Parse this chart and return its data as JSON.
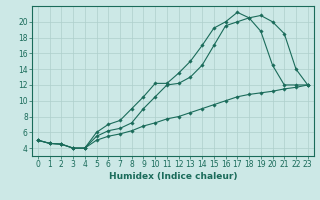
{
  "xlabel": "Humidex (Indice chaleur)",
  "bg_color": "#cce8e6",
  "line_color": "#1a6b5a",
  "grid_color": "#aecfcc",
  "line1_x": [
    0,
    1,
    2,
    3,
    4,
    5,
    6,
    7,
    8,
    9,
    10,
    11,
    12,
    13,
    14,
    15,
    16,
    17,
    18,
    19,
    20,
    21,
    22,
    23
  ],
  "line1_y": [
    5.0,
    4.6,
    4.5,
    4.0,
    4.0,
    6.0,
    7.0,
    7.5,
    9.0,
    10.5,
    12.2,
    12.2,
    13.5,
    15.0,
    17.0,
    19.2,
    20.0,
    21.2,
    20.5,
    18.8,
    14.5,
    12.0,
    12.0,
    12.0
  ],
  "line2_x": [
    0,
    1,
    2,
    3,
    4,
    5,
    6,
    7,
    8,
    9,
    10,
    11,
    12,
    13,
    14,
    15,
    16,
    17,
    18,
    19,
    20,
    21,
    22,
    23
  ],
  "line2_y": [
    5.0,
    4.6,
    4.5,
    4.0,
    4.0,
    5.5,
    6.2,
    6.5,
    7.2,
    9.0,
    10.5,
    12.0,
    12.2,
    13.0,
    14.5,
    17.0,
    19.5,
    20.0,
    20.5,
    20.8,
    20.0,
    18.5,
    14.0,
    12.0
  ],
  "line3_x": [
    0,
    1,
    2,
    3,
    4,
    5,
    6,
    7,
    8,
    9,
    10,
    11,
    12,
    13,
    14,
    15,
    16,
    17,
    18,
    19,
    20,
    21,
    22,
    23
  ],
  "line3_y": [
    5.0,
    4.6,
    4.5,
    4.0,
    4.0,
    5.0,
    5.5,
    5.8,
    6.2,
    6.8,
    7.2,
    7.7,
    8.0,
    8.5,
    9.0,
    9.5,
    10.0,
    10.5,
    10.8,
    11.0,
    11.2,
    11.5,
    11.7,
    12.0
  ],
  "xlim": [
    -0.5,
    23.5
  ],
  "ylim": [
    3.0,
    22.0
  ],
  "xticks": [
    0,
    1,
    2,
    3,
    4,
    5,
    6,
    7,
    8,
    9,
    10,
    11,
    12,
    13,
    14,
    15,
    16,
    17,
    18,
    19,
    20,
    21,
    22,
    23
  ],
  "yticks": [
    4,
    6,
    8,
    10,
    12,
    14,
    16,
    18,
    20
  ],
  "tick_fontsize": 5.5,
  "label_fontsize": 6.5,
  "marker": "D",
  "markersize": 1.8,
  "linewidth": 0.8
}
